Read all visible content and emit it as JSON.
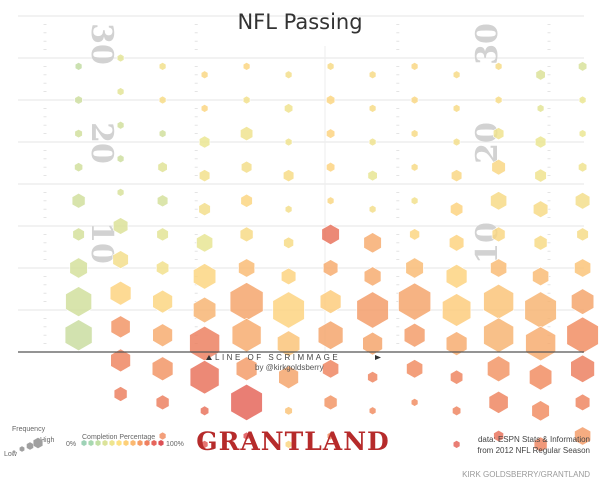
{
  "title": "NFL Passing",
  "field": {
    "yard_numbers_left": [
      "30",
      "20",
      "10"
    ],
    "yard_numbers_right": [
      "30",
      "20",
      "10"
    ],
    "line_of_scrimmage_label": "LINE OF SCRIMMAGE",
    "byline": "by @kirkgoldsberry"
  },
  "legend": {
    "frequency_title": "Frequency",
    "frequency_high": "High",
    "frequency_low": "Low",
    "completion_title": "Completion Percentage",
    "completion_min": "0%",
    "completion_max": "100%",
    "scale_colors": [
      "#9ed2b6",
      "#a8d8b0",
      "#c2dfa4",
      "#dbe39a",
      "#eee58e",
      "#fde184",
      "#fdd079",
      "#fbb870",
      "#f59c66",
      "#ef8060",
      "#e6655b",
      "#dc4f54"
    ]
  },
  "brand": "GRANTLAND",
  "source": {
    "line1": "data: ESPN Stats & Information",
    "line2": "from 2012 NFL Regular Season"
  },
  "credit": "KIRK GOLDSBERRY/GRANTLAND",
  "chart_data": {
    "type": "heatmap",
    "title": "NFL Passing",
    "x_unit": "yards from center of field (negative = left)",
    "y_unit": "yards downfield from line of scrimmage",
    "value_fields": [
      "x",
      "y",
      "frequency (0-1 relative)",
      "completion (0-1)"
    ],
    "hexes": [
      [
        -26,
        34,
        0.1,
        0.22
      ],
      [
        -26,
        30,
        0.12,
        0.28
      ],
      [
        -26,
        26,
        0.12,
        0.3
      ],
      [
        -26,
        22,
        0.14,
        0.3
      ],
      [
        -26,
        18,
        0.3,
        0.3
      ],
      [
        -26,
        14,
        0.25,
        0.32
      ],
      [
        -26,
        10,
        0.45,
        0.32
      ],
      [
        -26,
        6,
        0.72,
        0.3
      ],
      [
        -26,
        2,
        0.75,
        0.26
      ],
      [
        -21,
        35,
        0.1,
        0.4
      ],
      [
        -21,
        31,
        0.1,
        0.4
      ],
      [
        -21,
        27,
        0.1,
        0.3
      ],
      [
        -21,
        23,
        0.1,
        0.28
      ],
      [
        -21,
        19,
        0.1,
        0.34
      ],
      [
        -21,
        15,
        0.35,
        0.36
      ],
      [
        -21,
        11,
        0.38,
        0.52
      ],
      [
        -21,
        7,
        0.55,
        0.62
      ],
      [
        -21,
        3,
        0.5,
        0.78
      ],
      [
        -21,
        -1,
        0.52,
        0.82
      ],
      [
        -21,
        -5,
        0.3,
        0.84
      ],
      [
        -16,
        34,
        0.1,
        0.5
      ],
      [
        -16,
        30,
        0.1,
        0.55
      ],
      [
        -16,
        26,
        0.1,
        0.3
      ],
      [
        -16,
        22,
        0.18,
        0.38
      ],
      [
        -16,
        18,
        0.22,
        0.32
      ],
      [
        -16,
        14,
        0.25,
        0.4
      ],
      [
        -16,
        10,
        0.28,
        0.5
      ],
      [
        -16,
        6,
        0.52,
        0.6
      ],
      [
        -16,
        2,
        0.52,
        0.72
      ],
      [
        -16,
        -2,
        0.55,
        0.78
      ],
      [
        -16,
        -6,
        0.3,
        0.84
      ],
      [
        -16,
        -10,
        0.1,
        0.8
      ],
      [
        -11,
        33,
        0.1,
        0.58
      ],
      [
        -11,
        29,
        0.1,
        0.6
      ],
      [
        -11,
        25,
        0.22,
        0.44
      ],
      [
        -11,
        21,
        0.22,
        0.5
      ],
      [
        -11,
        17,
        0.25,
        0.52
      ],
      [
        -11,
        13,
        0.4,
        0.42
      ],
      [
        -11,
        9,
        0.6,
        0.6
      ],
      [
        -11,
        5,
        0.6,
        0.7
      ],
      [
        -11,
        1,
        0.85,
        0.84
      ],
      [
        -11,
        -3,
        0.82,
        0.88
      ],
      [
        -11,
        -7,
        0.15,
        0.88
      ],
      [
        -11,
        -11,
        0.1,
        0.95
      ],
      [
        -6,
        34,
        0.1,
        0.6
      ],
      [
        -6,
        30,
        0.1,
        0.5
      ],
      [
        -6,
        26,
        0.28,
        0.48
      ],
      [
        -6,
        22,
        0.22,
        0.52
      ],
      [
        -6,
        18,
        0.25,
        0.6
      ],
      [
        -6,
        14,
        0.3,
        0.56
      ],
      [
        -6,
        10,
        0.4,
        0.68
      ],
      [
        -6,
        6,
        0.95,
        0.74
      ],
      [
        -6,
        2,
        0.82,
        0.72
      ],
      [
        -6,
        -2,
        0.55,
        0.76
      ],
      [
        -6,
        -6,
        0.9,
        0.92
      ],
      [
        -6,
        -10,
        0.1,
        0.98
      ],
      [
        -1,
        33,
        0.1,
        0.52
      ],
      [
        -1,
        29,
        0.15,
        0.48
      ],
      [
        -1,
        25,
        0.1,
        0.48
      ],
      [
        -1,
        21,
        0.22,
        0.55
      ],
      [
        -1,
        17,
        0.1,
        0.52
      ],
      [
        -1,
        13,
        0.2,
        0.55
      ],
      [
        -1,
        9,
        0.35,
        0.62
      ],
      [
        -1,
        5,
        0.9,
        0.62
      ],
      [
        -1,
        1,
        0.6,
        0.66
      ],
      [
        -1,
        -3,
        0.52,
        0.74
      ],
      [
        -1,
        -7,
        0.12,
        0.66
      ],
      [
        -1,
        -11,
        0.1,
        0.6
      ],
      [
        4,
        34,
        0.1,
        0.56
      ],
      [
        4,
        30,
        0.15,
        0.6
      ],
      [
        4,
        26,
        0.15,
        0.62
      ],
      [
        4,
        22,
        0.15,
        0.62
      ],
      [
        4,
        18,
        0.1,
        0.58
      ],
      [
        4,
        14,
        0.45,
        0.88
      ],
      [
        4,
        10,
        0.35,
        0.72
      ],
      [
        4,
        6,
        0.55,
        0.64
      ],
      [
        4,
        2,
        0.68,
        0.74
      ],
      [
        4,
        -2,
        0.4,
        0.82
      ],
      [
        4,
        -6,
        0.3,
        0.78
      ],
      [
        4,
        -10,
        0.1,
        0.8
      ],
      [
        9,
        33,
        0.1,
        0.56
      ],
      [
        9,
        29,
        0.1,
        0.55
      ],
      [
        9,
        25,
        0.1,
        0.48
      ],
      [
        9,
        21,
        0.18,
        0.42
      ],
      [
        9,
        17,
        0.1,
        0.52
      ],
      [
        9,
        13,
        0.45,
        0.72
      ],
      [
        9,
        9,
        0.42,
        0.72
      ],
      [
        9,
        5,
        0.9,
        0.76
      ],
      [
        9,
        1,
        0.52,
        0.74
      ],
      [
        9,
        -3,
        0.2,
        0.82
      ],
      [
        9,
        -7,
        0.1,
        0.8
      ],
      [
        14,
        34,
        0.1,
        0.58
      ],
      [
        14,
        30,
        0.1,
        0.58
      ],
      [
        14,
        26,
        0.1,
        0.56
      ],
      [
        14,
        22,
        0.1,
        0.56
      ],
      [
        14,
        18,
        0.1,
        0.5
      ],
      [
        14,
        14,
        0.2,
        0.6
      ],
      [
        14,
        10,
        0.45,
        0.68
      ],
      [
        14,
        6,
        0.92,
        0.74
      ],
      [
        14,
        2,
        0.55,
        0.76
      ],
      [
        14,
        -2,
        0.4,
        0.8
      ],
      [
        14,
        -6,
        0.1,
        0.8
      ],
      [
        19,
        33,
        0.1,
        0.56
      ],
      [
        19,
        29,
        0.1,
        0.56
      ],
      [
        19,
        25,
        0.1,
        0.52
      ],
      [
        19,
        21,
        0.22,
        0.58
      ],
      [
        19,
        17,
        0.28,
        0.62
      ],
      [
        19,
        13,
        0.35,
        0.62
      ],
      [
        19,
        9,
        0.55,
        0.62
      ],
      [
        19,
        5,
        0.8,
        0.64
      ],
      [
        19,
        1,
        0.55,
        0.72
      ],
      [
        19,
        -3,
        0.28,
        0.82
      ],
      [
        19,
        -7,
        0.15,
        0.82
      ],
      [
        19,
        -11,
        0.1,
        0.92
      ],
      [
        24,
        34,
        0.1,
        0.54
      ],
      [
        24,
        30,
        0.1,
        0.55
      ],
      [
        24,
        26,
        0.22,
        0.48
      ],
      [
        24,
        22,
        0.32,
        0.58
      ],
      [
        24,
        18,
        0.4,
        0.56
      ],
      [
        24,
        14,
        0.3,
        0.58
      ],
      [
        24,
        10,
        0.4,
        0.68
      ],
      [
        24,
        6,
        0.85,
        0.66
      ],
      [
        24,
        2,
        0.85,
        0.7
      ],
      [
        24,
        -2,
        0.6,
        0.78
      ],
      [
        24,
        -6,
        0.5,
        0.82
      ],
      [
        24,
        -10,
        0.2,
        0.88
      ],
      [
        29,
        33,
        0.18,
        0.36
      ],
      [
        29,
        29,
        0.1,
        0.4
      ],
      [
        29,
        25,
        0.22,
        0.44
      ],
      [
        29,
        21,
        0.25,
        0.48
      ],
      [
        29,
        17,
        0.35,
        0.56
      ],
      [
        29,
        13,
        0.3,
        0.56
      ],
      [
        29,
        9,
        0.4,
        0.68
      ],
      [
        29,
        5,
        0.9,
        0.7
      ],
      [
        29,
        1,
        0.85,
        0.72
      ],
      [
        29,
        -3,
        0.6,
        0.8
      ],
      [
        29,
        -7,
        0.45,
        0.8
      ],
      [
        29,
        -11,
        0.3,
        0.82
      ],
      [
        34,
        34,
        0.15,
        0.34
      ],
      [
        34,
        30,
        0.1,
        0.44
      ],
      [
        34,
        26,
        0.1,
        0.44
      ],
      [
        34,
        22,
        0.15,
        0.48
      ],
      [
        34,
        18,
        0.35,
        0.52
      ],
      [
        34,
        14,
        0.25,
        0.54
      ],
      [
        34,
        10,
        0.4,
        0.66
      ],
      [
        34,
        6,
        0.6,
        0.74
      ],
      [
        34,
        2,
        0.9,
        0.8
      ],
      [
        34,
        -2,
        0.65,
        0.84
      ],
      [
        34,
        -6,
        0.35,
        0.82
      ],
      [
        34,
        -10,
        0.4,
        0.76
      ],
      [
        39,
        35,
        0.1,
        0.42
      ],
      [
        39,
        31,
        0.1,
        0.45
      ],
      [
        39,
        27,
        0.1,
        0.48
      ],
      [
        39,
        23,
        0.1,
        0.38
      ],
      [
        39,
        19,
        0.1,
        0.46
      ],
      [
        39,
        15,
        0.22,
        0.52
      ],
      [
        39,
        11,
        0.45,
        0.7
      ],
      [
        39,
        7,
        0.55,
        0.74
      ],
      [
        39,
        3,
        0.6,
        0.74
      ],
      [
        39,
        -1,
        0.4,
        0.84
      ],
      [
        39,
        -5,
        0.45,
        0.82
      ],
      [
        39,
        -9,
        0.15,
        0.8
      ],
      [
        44,
        36,
        0.1,
        0.3
      ],
      [
        44,
        32,
        0.1,
        0.28
      ],
      [
        44,
        28,
        0.1,
        0.28
      ],
      [
        44,
        24,
        0.1,
        0.3
      ],
      [
        44,
        20,
        0.3,
        0.4
      ],
      [
        44,
        16,
        0.38,
        0.54
      ],
      [
        44,
        12,
        0.4,
        0.6
      ],
      [
        44,
        8,
        0.58,
        0.58
      ],
      [
        44,
        4,
        0.5,
        0.44
      ],
      [
        44,
        0,
        0.3,
        0.38
      ],
      [
        44,
        -4,
        0.1,
        0.42
      ]
    ]
  }
}
